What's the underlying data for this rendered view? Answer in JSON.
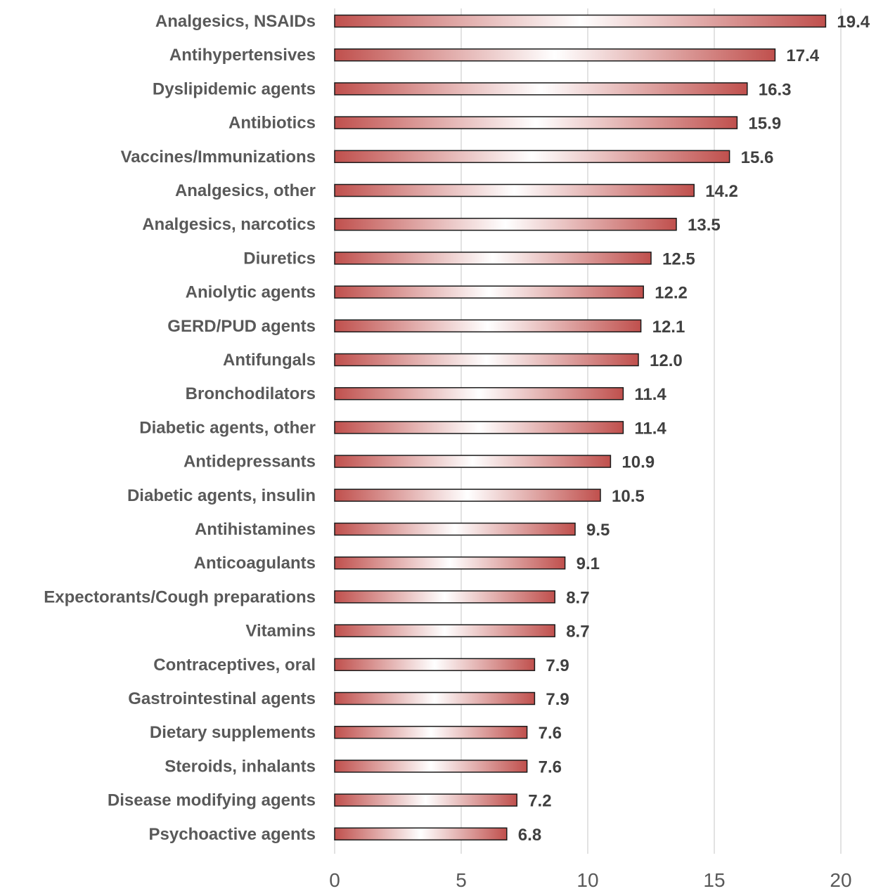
{
  "chart_data": {
    "type": "bar",
    "orientation": "horizontal",
    "title": "",
    "xlabel": "",
    "ylabel": "",
    "xlim": [
      0,
      20
    ],
    "x_ticks": [
      0,
      5,
      10,
      15,
      20
    ],
    "grid": "vertical",
    "legend": "none",
    "categories": [
      "Analgesics, NSAIDs",
      "Antihypertensives",
      "Dyslipidemic agents",
      "Antibiotics",
      "Vaccines/Immunizations",
      "Analgesics, other",
      "Analgesics, narcotics",
      "Diuretics",
      "Aniolytic agents",
      "GERD/PUD agents",
      "Antifungals",
      "Bronchodilators",
      "Diabetic agents, other",
      "Antidepressants",
      "Diabetic agents, insulin",
      "Antihistamines",
      "Anticoagulants",
      "Expectorants/Cough preparations",
      "Vitamins",
      "Contraceptives, oral",
      "Gastrointestinal agents",
      "Dietary supplements",
      "Steroids, inhalants",
      "Disease modifying agents",
      "Psychoactive agents"
    ],
    "values": [
      19.4,
      17.4,
      16.3,
      15.9,
      15.6,
      14.2,
      13.5,
      12.5,
      12.2,
      12.1,
      12.0,
      11.4,
      11.4,
      10.9,
      10.5,
      9.5,
      9.1,
      8.7,
      8.7,
      7.9,
      7.9,
      7.6,
      7.6,
      7.2,
      6.8
    ],
    "value_labels": [
      "19.4",
      "17.4",
      "16.3",
      "15.9",
      "15.6",
      "14.2",
      "13.5",
      "12.5",
      "12.2",
      "12.1",
      "12.0",
      "11.4",
      "11.4",
      "10.9",
      "10.5",
      "9.5",
      "9.1",
      "8.7",
      "8.7",
      "7.9",
      "7.9",
      "7.6",
      "7.6",
      "7.2",
      "6.8"
    ],
    "colors": {
      "bar_edge": "#c0504d",
      "bar_center": "#ffffff",
      "bar_outline": "#1a1a1a",
      "grid": "#d9d9d9"
    }
  }
}
